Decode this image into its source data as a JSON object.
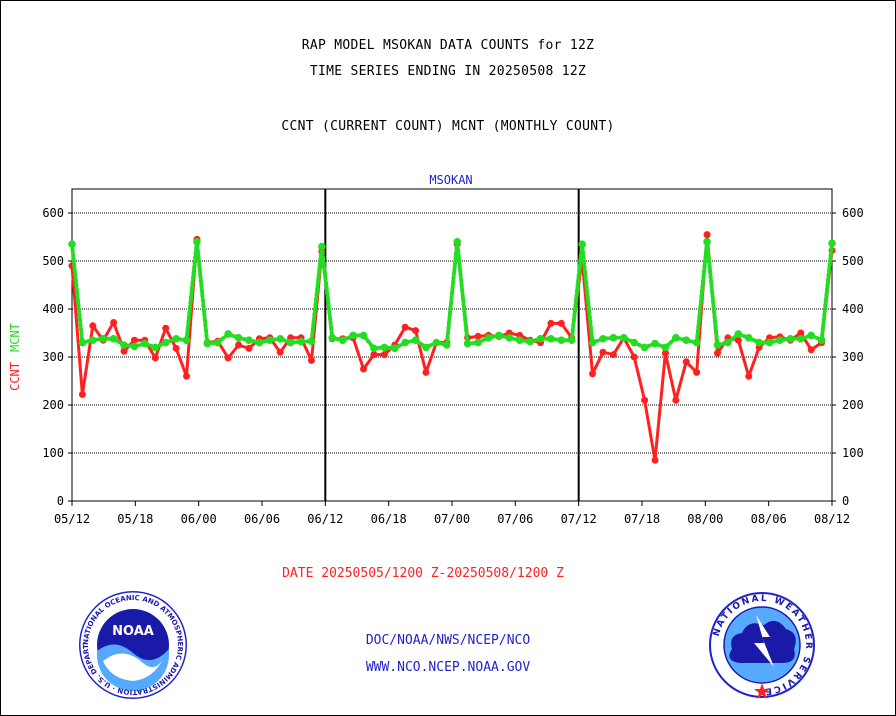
{
  "header": {
    "line1": "RAP MODEL MSOKAN DATA COUNTS for 12Z",
    "line2": "TIME SERIES ENDING IN 20250508 12Z",
    "line3": "CCNT (CURRENT COUNT) MCNT (MONTHLY COUNT)"
  },
  "footer": {
    "date_range": "DATE 20250505/1200 Z-20250508/1200 Z",
    "agency": "DOC/NOAA/NWS/NCEP/NCO",
    "url": "WWW.NCO.NCEP.NOAA.GOV"
  },
  "logos": {
    "noaa_text": "NOAA",
    "noaa_ring": "NATIONAL OCEANIC AND ATMOSPHERIC ADMINISTRATION · U.S. DEPARTMENT OF COMMERCE",
    "nws_ring": "NATIONAL WEATHER SERVICE"
  },
  "colors": {
    "ccnt": "#ff2020",
    "mcnt": "#22dd22",
    "axis": "#000000",
    "station": "#2222cc"
  },
  "chart_data": {
    "type": "line",
    "title": "MSOKAN",
    "ylabel_parts": [
      {
        "text": "CCNT",
        "color": "#ff2020"
      },
      {
        "text": "MCNT",
        "color": "#22dd22"
      }
    ],
    "ylim": [
      0,
      650
    ],
    "yticks": [
      0,
      100,
      200,
      300,
      400,
      500,
      600
    ],
    "xtick_labels": [
      "05/12",
      "05/18",
      "06/00",
      "06/06",
      "06/12",
      "06/18",
      "07/00",
      "07/06",
      "07/12",
      "07/18",
      "08/00",
      "08/06",
      "08/12"
    ],
    "grid": true,
    "panels": 3,
    "series": [
      {
        "name": "CCNT",
        "color": "#ff2020",
        "style": "solid",
        "values": [
          490,
          222,
          365,
          335,
          372,
          312,
          335,
          335,
          298,
          360,
          318,
          260,
          545,
          330,
          333,
          298,
          325,
          318,
          338,
          340,
          310,
          340,
          340,
          293,
          520,
          338,
          338,
          340,
          275,
          305,
          305,
          325,
          362,
          355,
          268,
          330,
          330,
          535,
          340,
          343,
          345,
          343,
          350,
          345,
          335,
          330,
          370,
          370,
          340,
          505,
          265,
          310,
          305,
          340,
          300,
          210,
          85,
          308,
          210,
          290,
          268,
          555,
          308,
          340,
          335,
          260,
          320,
          340,
          342,
          335,
          350,
          315,
          330,
          522
        ]
      },
      {
        "name": "MCNT",
        "color": "#22dd22",
        "style": "dotted",
        "values": [
          535,
          330,
          335,
          338,
          338,
          325,
          322,
          328,
          320,
          330,
          338,
          335,
          540,
          328,
          330,
          348,
          340,
          335,
          330,
          335,
          338,
          330,
          332,
          333,
          530,
          340,
          335,
          345,
          345,
          318,
          320,
          318,
          330,
          335,
          320,
          330,
          325,
          540,
          328,
          330,
          340,
          345,
          340,
          335,
          332,
          338,
          338,
          335,
          335,
          535,
          330,
          338,
          340,
          340,
          330,
          320,
          328,
          320,
          340,
          335,
          330,
          540,
          325,
          330,
          348,
          340,
          330,
          330,
          335,
          338,
          338,
          345,
          335,
          537
        ]
      }
    ]
  }
}
